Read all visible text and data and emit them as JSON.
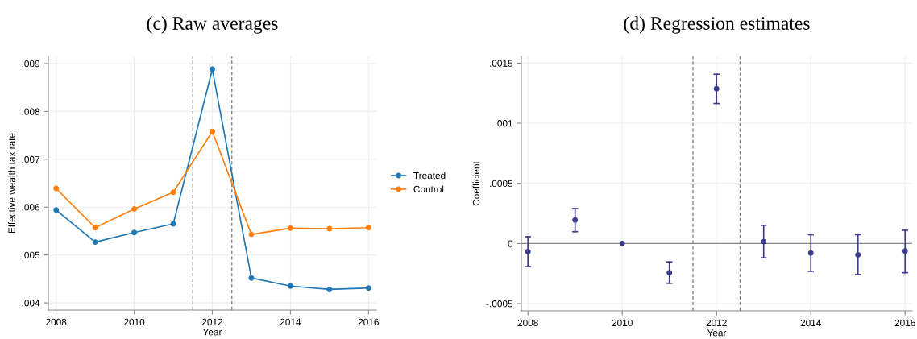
{
  "chart_data": [
    {
      "type": "line",
      "title": "(c) Raw averages",
      "xlabel": "Year",
      "ylabel": "Effective wealth tax rate",
      "x": [
        2008,
        2009,
        2010,
        2011,
        2012,
        2013,
        2014,
        2015,
        2016
      ],
      "series": [
        {
          "name": "Treated",
          "color": "#1f77b4",
          "values": [
            0.00594,
            0.00527,
            0.00547,
            0.00565,
            0.00888,
            0.00452,
            0.00435,
            0.00428,
            0.00431
          ]
        },
        {
          "name": "Control",
          "color": "#ff7f0e",
          "values": [
            0.00639,
            0.00557,
            0.00596,
            0.00631,
            0.00758,
            0.00543,
            0.00556,
            0.00555,
            0.00557
          ]
        }
      ],
      "xlim": [
        2007.8,
        2016.2
      ],
      "xticks": [
        2008,
        2010,
        2012,
        2014,
        2016
      ],
      "ylim": [
        0.00385,
        0.00915
      ],
      "yticks": [
        {
          "value": 0.004,
          "label": ".004"
        },
        {
          "value": 0.005,
          "label": ".005"
        },
        {
          "value": 0.006,
          "label": ".006"
        },
        {
          "value": 0.007,
          "label": ".007"
        },
        {
          "value": 0.008,
          "label": ".008"
        },
        {
          "value": 0.009,
          "label": ".009"
        }
      ],
      "ref_lines": [
        {
          "axis": "x",
          "value": 2011.5,
          "color": "#888888",
          "line_style": "dashed"
        },
        {
          "axis": "x",
          "value": 2012.5,
          "color": "#888888",
          "line_style": "dashed"
        }
      ],
      "grid": true,
      "legend": "right",
      "marker": "circle",
      "line_style": "solid"
    },
    {
      "type": "scatter",
      "title": "(d) Regression estimates",
      "xlabel": "Year",
      "ylabel": "Coefficient",
      "x": [
        2008,
        2009,
        2010,
        2011,
        2012,
        2013,
        2014,
        2015,
        2016
      ],
      "series": [
        {
          "color": "#3b3b8c",
          "values": [
            -6.8e-05,
            0.000195,
            0,
            -0.000243,
            0.001286,
            1.5e-05,
            -8e-05,
            -9.5e-05,
            -6.3e-05
          ],
          "errors": [
            [
              -0.000192,
              5.6e-05
            ],
            [
              9.8e-05,
              0.00029
            ],
            null,
            [
              -0.000331,
              -0.000153
            ],
            [
              0.001164,
              0.001407
            ],
            [
              -0.000119,
              0.000151
            ],
            [
              -0.000231,
              7.3e-05
            ],
            [
              -0.000258,
              7.3e-05
            ],
            [
              -0.000243,
              0.00011
            ]
          ]
        }
      ],
      "xlim": [
        2007.86,
        2016.15
      ],
      "xticks": [
        2008,
        2010,
        2012,
        2014,
        2016
      ],
      "ylim": [
        -0.00056,
        0.001556
      ],
      "yticks": [
        {
          "value": -0.0005,
          "label": "-.0005"
        },
        {
          "value": 0,
          "label": "0"
        },
        {
          "value": 0.0005,
          "label": ".0005"
        },
        {
          "value": 0.001,
          "label": ".001"
        },
        {
          "value": 0.0015,
          "label": ".0015"
        }
      ],
      "ref_lines": [
        {
          "axis": "x",
          "value": 2011.5,
          "color": "#888888",
          "line_style": "dashed"
        },
        {
          "axis": "x",
          "value": 2012.5,
          "color": "#888888",
          "line_style": "dashed"
        },
        {
          "axis": "y",
          "value": 0,
          "color": "#888888",
          "line_style": "solid"
        }
      ],
      "grid": true,
      "marker": "circle"
    }
  ]
}
